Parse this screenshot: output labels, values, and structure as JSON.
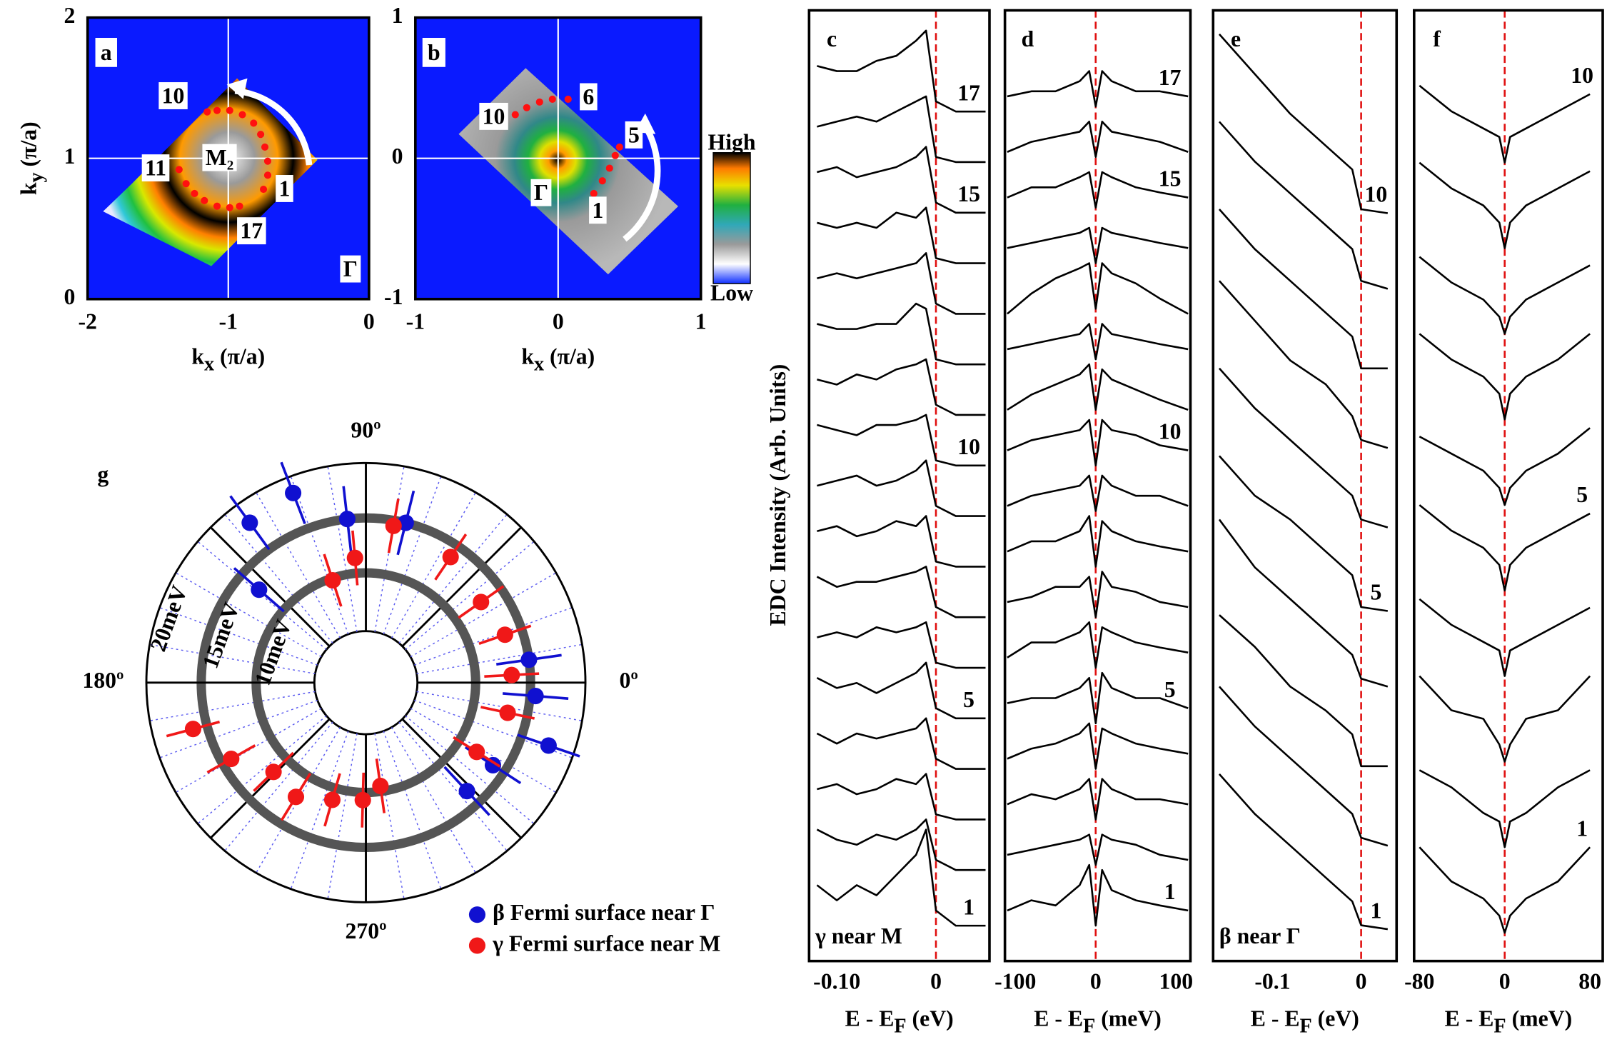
{
  "chart_data": [
    {
      "type": "scatter",
      "panel": "a",
      "xlim": [
        -2,
        0
      ],
      "ylim": [
        0,
        2
      ],
      "xticks": [
        -2,
        -1,
        0
      ],
      "yticks": [
        0,
        1,
        2
      ],
      "grid": true,
      "grid_color": "#ffffff",
      "xlabel": {
        "base": "k",
        "sub": "x",
        "rest": " (π/a)"
      },
      "ylabel": {
        "base": "k",
        "sub": "y",
        "rest": " (π/a)"
      },
      "annotations": [
        "10",
        "11",
        "M₂",
        "1",
        "17",
        "Γ"
      ],
      "points": {
        "color": "#ff1010",
        "x": [
          -0.75,
          -0.72,
          -0.72,
          -0.74,
          -0.77,
          -0.82,
          -0.9,
          -0.99,
          -1.08,
          -1.15,
          -1.35,
          -1.3,
          -1.24,
          -1.17,
          -1.08,
          -0.99,
          -0.92
        ],
        "y": [
          0.78,
          0.88,
          0.98,
          1.08,
          1.17,
          1.25,
          1.31,
          1.34,
          1.34,
          1.33,
          0.92,
          0.82,
          0.75,
          0.7,
          0.66,
          0.65,
          0.66
        ]
      }
    },
    {
      "type": "scatter",
      "panel": "b",
      "xlim": [
        -1,
        1
      ],
      "ylim": [
        -1,
        1
      ],
      "xticks": [
        -1,
        0,
        1
      ],
      "yticks": [
        -1,
        0,
        1
      ],
      "grid": true,
      "grid_color": "#ffffff",
      "xlabel": {
        "base": "k",
        "sub": "x",
        "rest": " (π/a)"
      },
      "annotations": [
        "10",
        "6",
        "5",
        "1",
        "Γ"
      ],
      "colorbar": {
        "high": "High",
        "low": "Low"
      },
      "points": {
        "color": "#ff1010",
        "x": [
          0.25,
          0.31,
          0.36,
          0.4,
          0.43,
          0.07,
          -0.04,
          -0.13,
          -0.22,
          -0.3
        ],
        "y": [
          -0.25,
          -0.16,
          -0.07,
          0.02,
          0.08,
          0.42,
          0.42,
          0.4,
          0.36,
          0.31
        ]
      }
    },
    {
      "type": "line",
      "panel": "c",
      "note": "γ near M",
      "ylabel": "EDC Intensity (Arb. Units)",
      "xlim": [
        -0.128,
        0.054
      ],
      "ylim": [
        -0.6,
        18.2
      ],
      "xticks": [
        {
          "value": -0.1,
          "label": "-0.10"
        },
        0
      ],
      "vline": 0,
      "color": "#000000",
      "label_color": "#e8141b",
      "xlabel": {
        "base": "E - E",
        "sub": "F",
        "rest": " (eV)"
      },
      "x": [
        -0.12,
        -0.1,
        -0.08,
        -0.06,
        -0.04,
        -0.02,
        -0.01,
        0,
        0.02,
        0.05
      ],
      "series": [
        {
          "name": "1",
          "values": [
            0.9,
            0.6,
            0.9,
            0.7,
            1.1,
            1.5,
            2.0,
            0.4,
            0.1,
            0.1
          ]
        },
        {
          "values": [
            1.0,
            0.8,
            0.7,
            0.9,
            0.8,
            1.0,
            1.2,
            0.4,
            0.2,
            0.2
          ]
        },
        {
          "values": [
            0.8,
            0.9,
            0.7,
            0.8,
            1.0,
            0.9,
            1.1,
            0.3,
            0.2,
            0.2
          ]
        },
        {
          "values": [
            0.9,
            0.7,
            0.9,
            0.8,
            0.9,
            1.0,
            1.2,
            0.4,
            0.2,
            0.2
          ]
        },
        {
          "name": "5",
          "values": [
            1.0,
            0.8,
            0.9,
            0.7,
            0.9,
            1.1,
            1.3,
            0.4,
            0.2,
            0.2
          ]
        },
        {
          "values": [
            0.8,
            0.9,
            0.8,
            1.0,
            0.9,
            1.0,
            1.1,
            0.3,
            0.2,
            0.2
          ]
        },
        {
          "values": [
            1.0,
            0.8,
            0.9,
            0.9,
            1.0,
            1.1,
            1.2,
            0.4,
            0.2,
            0.2
          ]
        },
        {
          "values": [
            0.9,
            1.0,
            0.8,
            0.9,
            1.1,
            1.0,
            1.2,
            0.3,
            0.2,
            0.2
          ]
        },
        {
          "values": [
            0.8,
            0.9,
            1.0,
            0.8,
            0.9,
            1.1,
            1.3,
            0.4,
            0.2,
            0.2
          ]
        },
        {
          "name": "10",
          "values": [
            1.0,
            0.9,
            0.8,
            1.0,
            1.0,
            1.1,
            1.2,
            0.3,
            0.2,
            0.2
          ]
        },
        {
          "values": [
            0.9,
            0.8,
            1.0,
            0.9,
            1.1,
            1.2,
            1.3,
            0.4,
            0.2,
            0.2
          ]
        },
        {
          "values": [
            1.0,
            0.9,
            0.9,
            1.0,
            1.0,
            1.4,
            1.3,
            0.3,
            0.2,
            0.2
          ]
        },
        {
          "values": [
            0.9,
            1.0,
            0.9,
            1.0,
            1.1,
            1.2,
            1.4,
            0.4,
            0.2,
            0.2
          ]
        },
        {
          "values": [
            1.0,
            0.9,
            1.0,
            0.9,
            1.2,
            1.1,
            1.3,
            0.3,
            0.2,
            0.2
          ]
        },
        {
          "name": "15",
          "values": [
            1.0,
            1.1,
            0.9,
            1.0,
            1.1,
            1.3,
            1.5,
            0.4,
            0.2,
            0.2
          ]
        },
        {
          "values": [
            0.9,
            1.0,
            1.1,
            1.0,
            1.2,
            1.4,
            1.5,
            0.3,
            0.2,
            0.2
          ]
        },
        {
          "name": "17",
          "values": [
            1.1,
            1.0,
            1.0,
            1.2,
            1.3,
            1.6,
            1.8,
            0.4,
            0.2,
            0.2
          ]
        }
      ]
    },
    {
      "type": "line",
      "panel": "d",
      "xlim": [
        -113,
        118
      ],
      "ylim": [
        -0.6,
        18.2
      ],
      "xticks": [
        -100,
        0,
        100
      ],
      "vline": 0,
      "color": "#000000",
      "label_color": "#e8141b",
      "xlabel": {
        "base": "E - E",
        "sub": "F",
        "rest": " (meV)"
      },
      "x": [
        -110,
        -80,
        -50,
        -20,
        -8,
        0,
        8,
        20,
        50,
        80,
        115
      ],
      "series": [
        {
          "name": "1",
          "values": [
            0.4,
            0.6,
            0.5,
            0.9,
            1.3,
            0.1,
            1.2,
            0.8,
            0.6,
            0.5,
            0.4
          ]
        },
        {
          "values": [
            0.5,
            0.6,
            0.7,
            0.8,
            0.9,
            0.3,
            0.9,
            0.8,
            0.7,
            0.5,
            0.4
          ]
        },
        {
          "values": [
            0.5,
            0.7,
            0.6,
            0.8,
            1.0,
            0.2,
            1.0,
            0.8,
            0.6,
            0.6,
            0.5
          ]
        },
        {
          "values": [
            0.4,
            0.6,
            0.7,
            0.9,
            1.1,
            0.2,
            1.0,
            0.9,
            0.7,
            0.6,
            0.5
          ]
        },
        {
          "name": "5",
          "values": [
            0.5,
            0.6,
            0.6,
            0.8,
            1.0,
            0.1,
            1.1,
            0.8,
            0.6,
            0.6,
            0.4
          ]
        },
        {
          "values": [
            0.4,
            0.7,
            0.7,
            0.9,
            1.1,
            0.2,
            1.0,
            0.9,
            0.7,
            0.6,
            0.5
          ]
        },
        {
          "values": [
            0.5,
            0.6,
            0.8,
            0.8,
            1.0,
            0.2,
            1.1,
            0.8,
            0.7,
            0.5,
            0.4
          ]
        },
        {
          "values": [
            0.5,
            0.7,
            0.7,
            0.9,
            1.2,
            0.2,
            1.1,
            0.9,
            0.7,
            0.6,
            0.5
          ]
        },
        {
          "values": [
            0.4,
            0.6,
            0.7,
            0.8,
            1.0,
            0.3,
            1.0,
            0.8,
            0.6,
            0.6,
            0.4
          ]
        },
        {
          "name": "10",
          "values": [
            0.5,
            0.7,
            0.8,
            0.9,
            1.1,
            0.2,
            1.1,
            0.9,
            0.8,
            0.6,
            0.5
          ]
        },
        {
          "values": [
            0.3,
            0.6,
            0.8,
            1.0,
            1.2,
            0.3,
            1.1,
            0.9,
            0.7,
            0.5,
            0.3
          ]
        },
        {
          "values": [
            0.5,
            0.6,
            0.7,
            0.8,
            1.0,
            0.3,
            1.0,
            0.8,
            0.7,
            0.6,
            0.5
          ]
        },
        {
          "values": [
            0.2,
            0.6,
            0.9,
            1.1,
            1.2,
            0.3,
            1.2,
            1.0,
            0.8,
            0.5,
            0.2
          ]
        },
        {
          "values": [
            0.5,
            0.6,
            0.7,
            0.8,
            0.9,
            0.2,
            0.9,
            0.8,
            0.7,
            0.6,
            0.5
          ]
        },
        {
          "name": "15",
          "values": [
            0.5,
            0.7,
            0.7,
            0.9,
            1.0,
            0.3,
            1.0,
            0.9,
            0.7,
            0.6,
            0.5
          ]
        },
        {
          "values": [
            0.4,
            0.6,
            0.7,
            0.8,
            1.0,
            0.3,
            1.0,
            0.8,
            0.7,
            0.6,
            0.4
          ]
        },
        {
          "name": "17",
          "values": [
            0.5,
            0.6,
            0.6,
            0.8,
            1.0,
            0.3,
            1.0,
            0.8,
            0.6,
            0.6,
            0.5
          ]
        }
      ]
    },
    {
      "type": "line",
      "panel": "e",
      "note": "β near Γ",
      "xlim": [
        -0.167,
        0.04
      ],
      "ylim": [
        -0.35,
        11.6
      ],
      "xticks": [
        -0.1,
        0
      ],
      "vline": 0,
      "color": "#000000",
      "label_color": "#1f4fd8",
      "xlabel": {
        "base": "E - E",
        "sub": "F",
        "rest": " (eV)"
      },
      "x": [
        -0.16,
        -0.12,
        -0.08,
        -0.04,
        -0.01,
        0,
        0.03
      ],
      "series": [
        {
          "name": "1",
          "values": [
            2.0,
            1.5,
            1.1,
            0.7,
            0.4,
            0.1,
            0.05
          ]
        },
        {
          "values": [
            2.1,
            1.6,
            1.2,
            0.8,
            0.5,
            0.2,
            0.1
          ]
        },
        {
          "values": [
            2.0,
            1.6,
            1.1,
            0.8,
            0.5,
            0.1,
            0.1
          ]
        },
        {
          "values": [
            2.2,
            1.6,
            1.2,
            0.8,
            0.5,
            0.2,
            0.1
          ]
        },
        {
          "name": "5",
          "values": [
            2.0,
            1.5,
            1.2,
            0.8,
            0.5,
            0.1,
            0.05
          ]
        },
        {
          "values": [
            2.1,
            1.6,
            1.2,
            0.8,
            0.5,
            0.2,
            0.1
          ]
        },
        {
          "values": [
            2.2,
            1.7,
            1.2,
            0.9,
            0.5,
            0.2,
            0.1
          ]
        },
        {
          "values": [
            2.1,
            1.6,
            1.2,
            0.8,
            0.5,
            0.1,
            0.1
          ]
        },
        {
          "values": [
            2.2,
            1.7,
            1.3,
            0.9,
            0.6,
            0.2,
            0.1
          ]
        },
        {
          "name": "10",
          "values": [
            2.3,
            1.8,
            1.3,
            0.9,
            0.6,
            0.1,
            0.05
          ]
        }
      ]
    },
    {
      "type": "line",
      "panel": "f",
      "xlim": [
        -85,
        92
      ],
      "ylim": [
        -0.33,
        10.78
      ],
      "xticks": [
        -80,
        0,
        80
      ],
      "vline": 0,
      "color": "#000000",
      "label_color": "#1f4fd8",
      "xlabel": {
        "base": "E - E",
        "sub": "F",
        "rest": " (meV)"
      },
      "x": [
        -80,
        -50,
        -20,
        -5,
        0,
        5,
        20,
        50,
        80
      ],
      "series": [
        {
          "name": "1",
          "values": [
            1.0,
            0.6,
            0.4,
            0.2,
            0,
            0.2,
            0.4,
            0.6,
            1.0
          ]
        },
        {
          "values": [
            0.9,
            0.7,
            0.4,
            0.3,
            0,
            0.3,
            0.4,
            0.7,
            0.9
          ]
        },
        {
          "values": [
            1.0,
            0.6,
            0.5,
            0.2,
            0,
            0.2,
            0.5,
            0.6,
            1.0
          ]
        },
        {
          "values": [
            0.9,
            0.6,
            0.4,
            0.3,
            0,
            0.3,
            0.4,
            0.6,
            0.8
          ]
        },
        {
          "name": "5",
          "values": [
            1.0,
            0.7,
            0.5,
            0.3,
            0,
            0.3,
            0.5,
            0.7,
            0.9
          ]
        },
        {
          "values": [
            0.8,
            0.6,
            0.4,
            0.2,
            0,
            0.2,
            0.4,
            0.6,
            0.9
          ]
        },
        {
          "values": [
            1.0,
            0.7,
            0.5,
            0.3,
            0,
            0.3,
            0.5,
            0.7,
            1.0
          ]
        },
        {
          "values": [
            0.9,
            0.6,
            0.4,
            0.2,
            0,
            0.2,
            0.4,
            0.6,
            0.8
          ]
        },
        {
          "values": [
            1.0,
            0.7,
            0.5,
            0.3,
            0,
            0.3,
            0.5,
            0.7,
            0.9
          ]
        },
        {
          "name": "10",
          "values": [
            0.9,
            0.6,
            0.4,
            0.3,
            0,
            0.3,
            0.4,
            0.6,
            0.8
          ]
        }
      ]
    },
    {
      "type": "polar",
      "panel": "g",
      "rlim": [
        0,
        20
      ],
      "rticks": [
        {
          "value": 10,
          "label": "10meV"
        },
        {
          "value": 15,
          "label": "15meV"
        },
        {
          "value": 20,
          "label": "20meV"
        }
      ],
      "thetaticks": [
        {
          "value": 0,
          "label": "0º"
        },
        {
          "value": 90,
          "label": "90º"
        },
        {
          "value": 180,
          "label": "180º"
        },
        {
          "value": 270,
          "label": "270º"
        }
      ],
      "series": [
        {
          "name": "β Fermi surface near Γ",
          "color": "#1010d0",
          "angles": [
            111,
            126,
            96.5,
            76,
            139,
            8,
            355.5,
            341,
            327,
            313
          ],
          "values": [
            18.5,
            18,
            15,
            15,
            12.9,
            15,
            15.5,
            17.6,
            13.8,
            13.5
          ],
          "errors": [
            3,
            3,
            3,
            3,
            3,
            3,
            3,
            3,
            3,
            3
          ]
        },
        {
          "name": "γ Fermi surface near M",
          "color": "#f01818",
          "angles": [
            80,
            95,
            108,
            56,
            35,
            19,
            3,
            348,
            328,
            278,
            268.5,
            254,
            238.5,
            224,
            209.5,
            195
          ],
          "values": [
            14.5,
            11.4,
            9.8,
            13.8,
            12.8,
            13.4,
            13.3,
            13.2,
            11.9,
            9.5,
            10.7,
            11.1,
            12.2,
            11.7,
            14.1,
            16.3
          ],
          "errors": [
            2.5,
            2.5,
            2.5,
            2.5,
            2.5,
            2.5,
            2.5,
            2.5,
            2.5,
            2.5,
            2.5,
            2.5,
            2.5,
            2.5,
            2.5,
            2.5
          ]
        }
      ]
    }
  ]
}
